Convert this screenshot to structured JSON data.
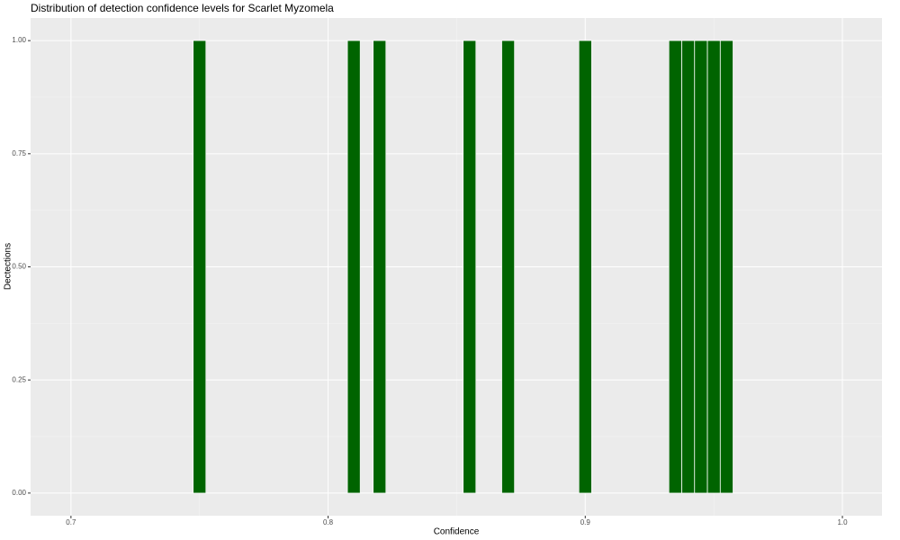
{
  "chart_data": {
    "type": "bar",
    "title": "Distribution of detection confidence levels for Scarlet Myzomela",
    "x_label": "Confidence",
    "y_label": "Dectections",
    "x": [
      0.75,
      0.81,
      0.82,
      0.855,
      0.87,
      0.9,
      0.935,
      0.94,
      0.945,
      0.95,
      0.955
    ],
    "values": [
      1,
      1,
      1,
      1,
      1,
      1,
      1,
      1,
      1,
      1,
      1
    ],
    "color": "#006400",
    "xlim": [
      0.6843,
      1.0154
    ],
    "ylim": [
      -0.05,
      1.05
    ],
    "xticks": [
      0.7,
      0.8,
      0.9,
      {
        "value": 1.0,
        "label": "1.0"
      }
    ],
    "yticks": [
      {
        "value": 0,
        "label": "0.00"
      },
      {
        "value": 0.25,
        "label": "0.25"
      },
      {
        "value": 0.5,
        "label": "0.50"
      },
      {
        "value": 0.75,
        "label": "0.75"
      },
      {
        "value": 1,
        "label": "1.00"
      }
    ],
    "grid": true
  }
}
